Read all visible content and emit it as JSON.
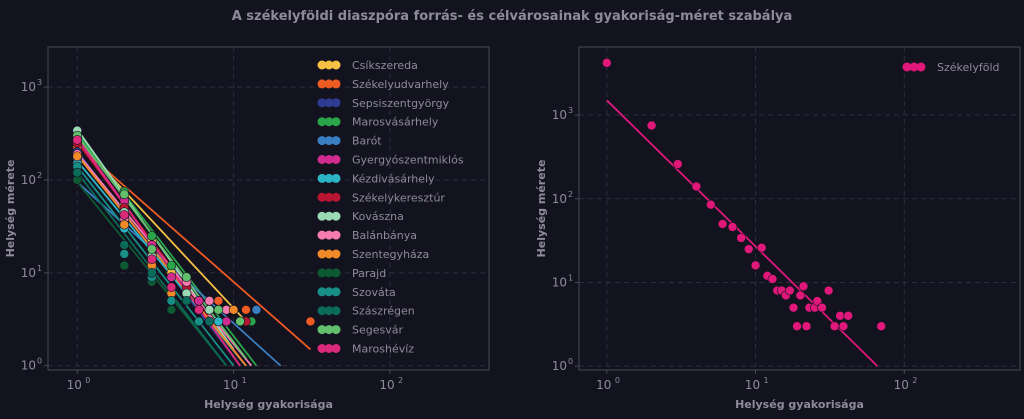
{
  "figure_title": "A székelyföldi diaszpóra forrás- és célvárosainak gyakoriság-méret szabálya",
  "colors": {
    "background": "#13121f",
    "grid": "#2d2c3c",
    "spine": "#4a4957",
    "text": "#8d8b99",
    "right_series": "#e0187a"
  },
  "chart_data": [
    {
      "type": "scatter",
      "scale": "log-log",
      "xlabel": "Helység gyakorisága",
      "ylabel": "Helység mérete",
      "xlim": [
        0.65,
        430
      ],
      "ylim": [
        0.9,
        2700
      ],
      "x_ticks": [
        {
          "v": 1,
          "base": "10",
          "exp": "0"
        },
        {
          "v": 10,
          "base": "10",
          "exp": "1"
        },
        {
          "v": 100,
          "base": "10",
          "exp": "2"
        }
      ],
      "y_ticks": [
        {
          "v": 1,
          "base": "10",
          "exp": "0"
        },
        {
          "v": 10,
          "base": "10",
          "exp": "1"
        },
        {
          "v": 100,
          "base": "10",
          "exp": "2"
        },
        {
          "v": 1000,
          "base": "10",
          "exp": "3"
        }
      ],
      "grid": true,
      "legend_position": "upper-right",
      "series": [
        {
          "name": "Csíkszereda",
          "color": "#f6c244",
          "points": [
            [
              1,
              260
            ],
            [
              2,
              55
            ],
            [
              3,
              22
            ],
            [
              4,
              10
            ],
            [
              5,
              6
            ],
            [
              7,
              4
            ],
            [
              10,
              4
            ]
          ],
          "fit": [
            [
              1,
              265
            ],
            [
              12,
              3
            ]
          ]
        },
        {
          "name": "Székelyudvarhely",
          "color": "#ee5b23",
          "points": [
            [
              1,
              230
            ],
            [
              2,
              48
            ],
            [
              3,
              18
            ],
            [
              5,
              8
            ],
            [
              8,
              5
            ],
            [
              12,
              4
            ],
            [
              31,
              3
            ]
          ],
          "fit": [
            [
              1,
              240
            ],
            [
              31,
              1.5
            ]
          ]
        },
        {
          "name": "Sepsiszentgyörgy",
          "color": "#2f3a91",
          "points": [
            [
              1,
              200
            ],
            [
              2,
              40
            ],
            [
              3,
              14
            ],
            [
              4,
              7
            ],
            [
              6,
              4
            ],
            [
              9,
              3
            ]
          ],
          "fit": [
            [
              1,
              205
            ],
            [
              11,
              1
            ]
          ]
        },
        {
          "name": "Marosvásárhely",
          "color": "#2aa54a",
          "points": [
            [
              1,
              310
            ],
            [
              2,
              75
            ],
            [
              3,
              25
            ],
            [
              4,
              12
            ],
            [
              6,
              5
            ],
            [
              10,
              4
            ],
            [
              13,
              3
            ]
          ],
          "fit": [
            [
              1,
              320
            ],
            [
              14,
              1
            ]
          ]
        },
        {
          "name": "Barót",
          "color": "#3a7fc1",
          "points": [
            [
              1,
              170
            ],
            [
              2,
              35
            ],
            [
              3,
              12
            ],
            [
              5,
              6
            ],
            [
              9,
              4
            ],
            [
              14,
              4
            ]
          ],
          "fit": [
            [
              1,
              95
            ],
            [
              20,
              1
            ]
          ]
        },
        {
          "name": "Gyergyószentmiklós",
          "color": "#d02c8f",
          "points": [
            [
              1,
              280
            ],
            [
              2,
              60
            ],
            [
              3,
              20
            ],
            [
              4,
              9
            ],
            [
              6,
              5
            ],
            [
              9,
              3
            ]
          ],
          "fit": [
            [
              1,
              285
            ],
            [
              11,
              1
            ]
          ]
        },
        {
          "name": "Kézdivásárhely",
          "color": "#2db4c4",
          "points": [
            [
              1,
              150
            ],
            [
              2,
              30
            ],
            [
              3,
              11
            ],
            [
              5,
              5
            ],
            [
              8,
              3
            ]
          ],
          "fit": [
            [
              1,
              160
            ],
            [
              12,
              1
            ]
          ]
        },
        {
          "name": "Székelykeresztúr",
          "color": "#b81630",
          "points": [
            [
              1,
              250
            ],
            [
              2,
              50
            ],
            [
              3,
              16
            ],
            [
              5,
              7
            ],
            [
              9,
              4
            ],
            [
              12,
              3
            ]
          ],
          "fit": [
            [
              1,
              255
            ],
            [
              12,
              1
            ]
          ]
        },
        {
          "name": "Kovászna",
          "color": "#9ad9b4",
          "points": [
            [
              1,
              340
            ],
            [
              2,
              45
            ],
            [
              3,
              15
            ],
            [
              5,
              6
            ],
            [
              7,
              4
            ],
            [
              11,
              3
            ]
          ],
          "fit": [
            [
              1,
              350
            ],
            [
              10,
              1.5
            ]
          ]
        },
        {
          "name": "Balánbánya",
          "color": "#f57bb0",
          "points": [
            [
              1,
              190
            ],
            [
              2,
              38
            ],
            [
              3,
              13
            ],
            [
              5,
              8
            ],
            [
              7,
              5
            ],
            [
              9,
              4
            ],
            [
              11,
              3
            ]
          ],
          "fit": [
            [
              1,
              195
            ],
            [
              13,
              1
            ]
          ]
        },
        {
          "name": "Szentegyháza",
          "color": "#f08a28",
          "points": [
            [
              1,
              180
            ],
            [
              2,
              33
            ],
            [
              3,
              12
            ],
            [
              4,
              6
            ],
            [
              6,
              4
            ],
            [
              10,
              4
            ]
          ],
          "fit": [
            [
              1,
              185
            ],
            [
              12,
              1
            ]
          ]
        },
        {
          "name": "Parajd",
          "color": "#0d5a32",
          "points": [
            [
              1,
              100
            ],
            [
              2,
              12
            ],
            [
              3,
              8
            ],
            [
              4,
              4
            ]
          ],
          "fit": [
            [
              1,
              95
            ],
            [
              9,
              1
            ]
          ]
        },
        {
          "name": "Szováta",
          "color": "#178f87",
          "points": [
            [
              1,
              140
            ],
            [
              2,
              16
            ],
            [
              3,
              9
            ],
            [
              4,
              5
            ],
            [
              6,
              3
            ]
          ],
          "fit": [
            [
              1,
              140
            ],
            [
              10,
              1
            ]
          ]
        },
        {
          "name": "Szászrégen",
          "color": "#0b6b5a",
          "points": [
            [
              1,
              120
            ],
            [
              2,
              20
            ],
            [
              3,
              10
            ],
            [
              5,
              5
            ],
            [
              7,
              3
            ]
          ],
          "fit": [
            [
              1,
              120
            ],
            [
              9,
              1
            ]
          ]
        },
        {
          "name": "Segesvár",
          "color": "#62c06c",
          "points": [
            [
              1,
              300
            ],
            [
              2,
              70
            ],
            [
              3,
              18
            ],
            [
              5,
              9
            ],
            [
              8,
              4
            ],
            [
              11,
              3
            ]
          ],
          "fit": [
            [
              1,
              300
            ],
            [
              12,
              1.2
            ]
          ]
        },
        {
          "name": "Maroshévíz",
          "color": "#db2a7a",
          "points": [
            [
              1,
              270
            ],
            [
              2,
              42
            ],
            [
              3,
              14
            ],
            [
              4,
              7
            ],
            [
              6,
              4
            ]
          ],
          "fit": [
            [
              1,
              275
            ],
            [
              11,
              1
            ]
          ]
        }
      ]
    },
    {
      "type": "scatter",
      "scale": "log-log",
      "xlabel": "Helység gyakorisága",
      "ylabel": "Helység mérete",
      "xlim": [
        0.65,
        600
      ],
      "ylim": [
        0.9,
        6500
      ],
      "x_ticks": [
        {
          "v": 1,
          "base": "10",
          "exp": "0"
        },
        {
          "v": 10,
          "base": "10",
          "exp": "1"
        },
        {
          "v": 100,
          "base": "10",
          "exp": "2"
        }
      ],
      "y_ticks": [
        {
          "v": 1,
          "base": "10",
          "exp": "0"
        },
        {
          "v": 10,
          "base": "10",
          "exp": "1"
        },
        {
          "v": 100,
          "base": "10",
          "exp": "2"
        },
        {
          "v": 1000,
          "base": "10",
          "exp": "3"
        }
      ],
      "grid": true,
      "legend_position": "upper-right",
      "series": [
        {
          "name": "Székelyföld",
          "color": "#e0187a",
          "points": [
            [
              1,
              4200
            ],
            [
              2,
              750
            ],
            [
              3,
              260
            ],
            [
              4,
              140
            ],
            [
              5,
              85
            ],
            [
              6,
              50
            ],
            [
              7,
              46
            ],
            [
              8,
              34
            ],
            [
              9,
              25
            ],
            [
              10,
              16
            ],
            [
              11,
              26
            ],
            [
              12,
              12
            ],
            [
              13,
              11
            ],
            [
              14,
              8
            ],
            [
              15,
              8
            ],
            [
              16,
              7
            ],
            [
              17,
              8
            ],
            [
              18,
              5
            ],
            [
              19,
              3
            ],
            [
              20,
              7
            ],
            [
              21,
              9
            ],
            [
              22,
              3
            ],
            [
              23,
              5
            ],
            [
              25,
              5
            ],
            [
              26,
              6
            ],
            [
              28,
              5
            ],
            [
              31,
              8
            ],
            [
              34,
              3
            ],
            [
              37,
              4
            ],
            [
              39,
              3
            ],
            [
              42,
              4
            ],
            [
              70,
              3
            ]
          ],
          "fit": [
            [
              1,
              1500
            ],
            [
              66,
              1
            ]
          ]
        }
      ]
    }
  ]
}
